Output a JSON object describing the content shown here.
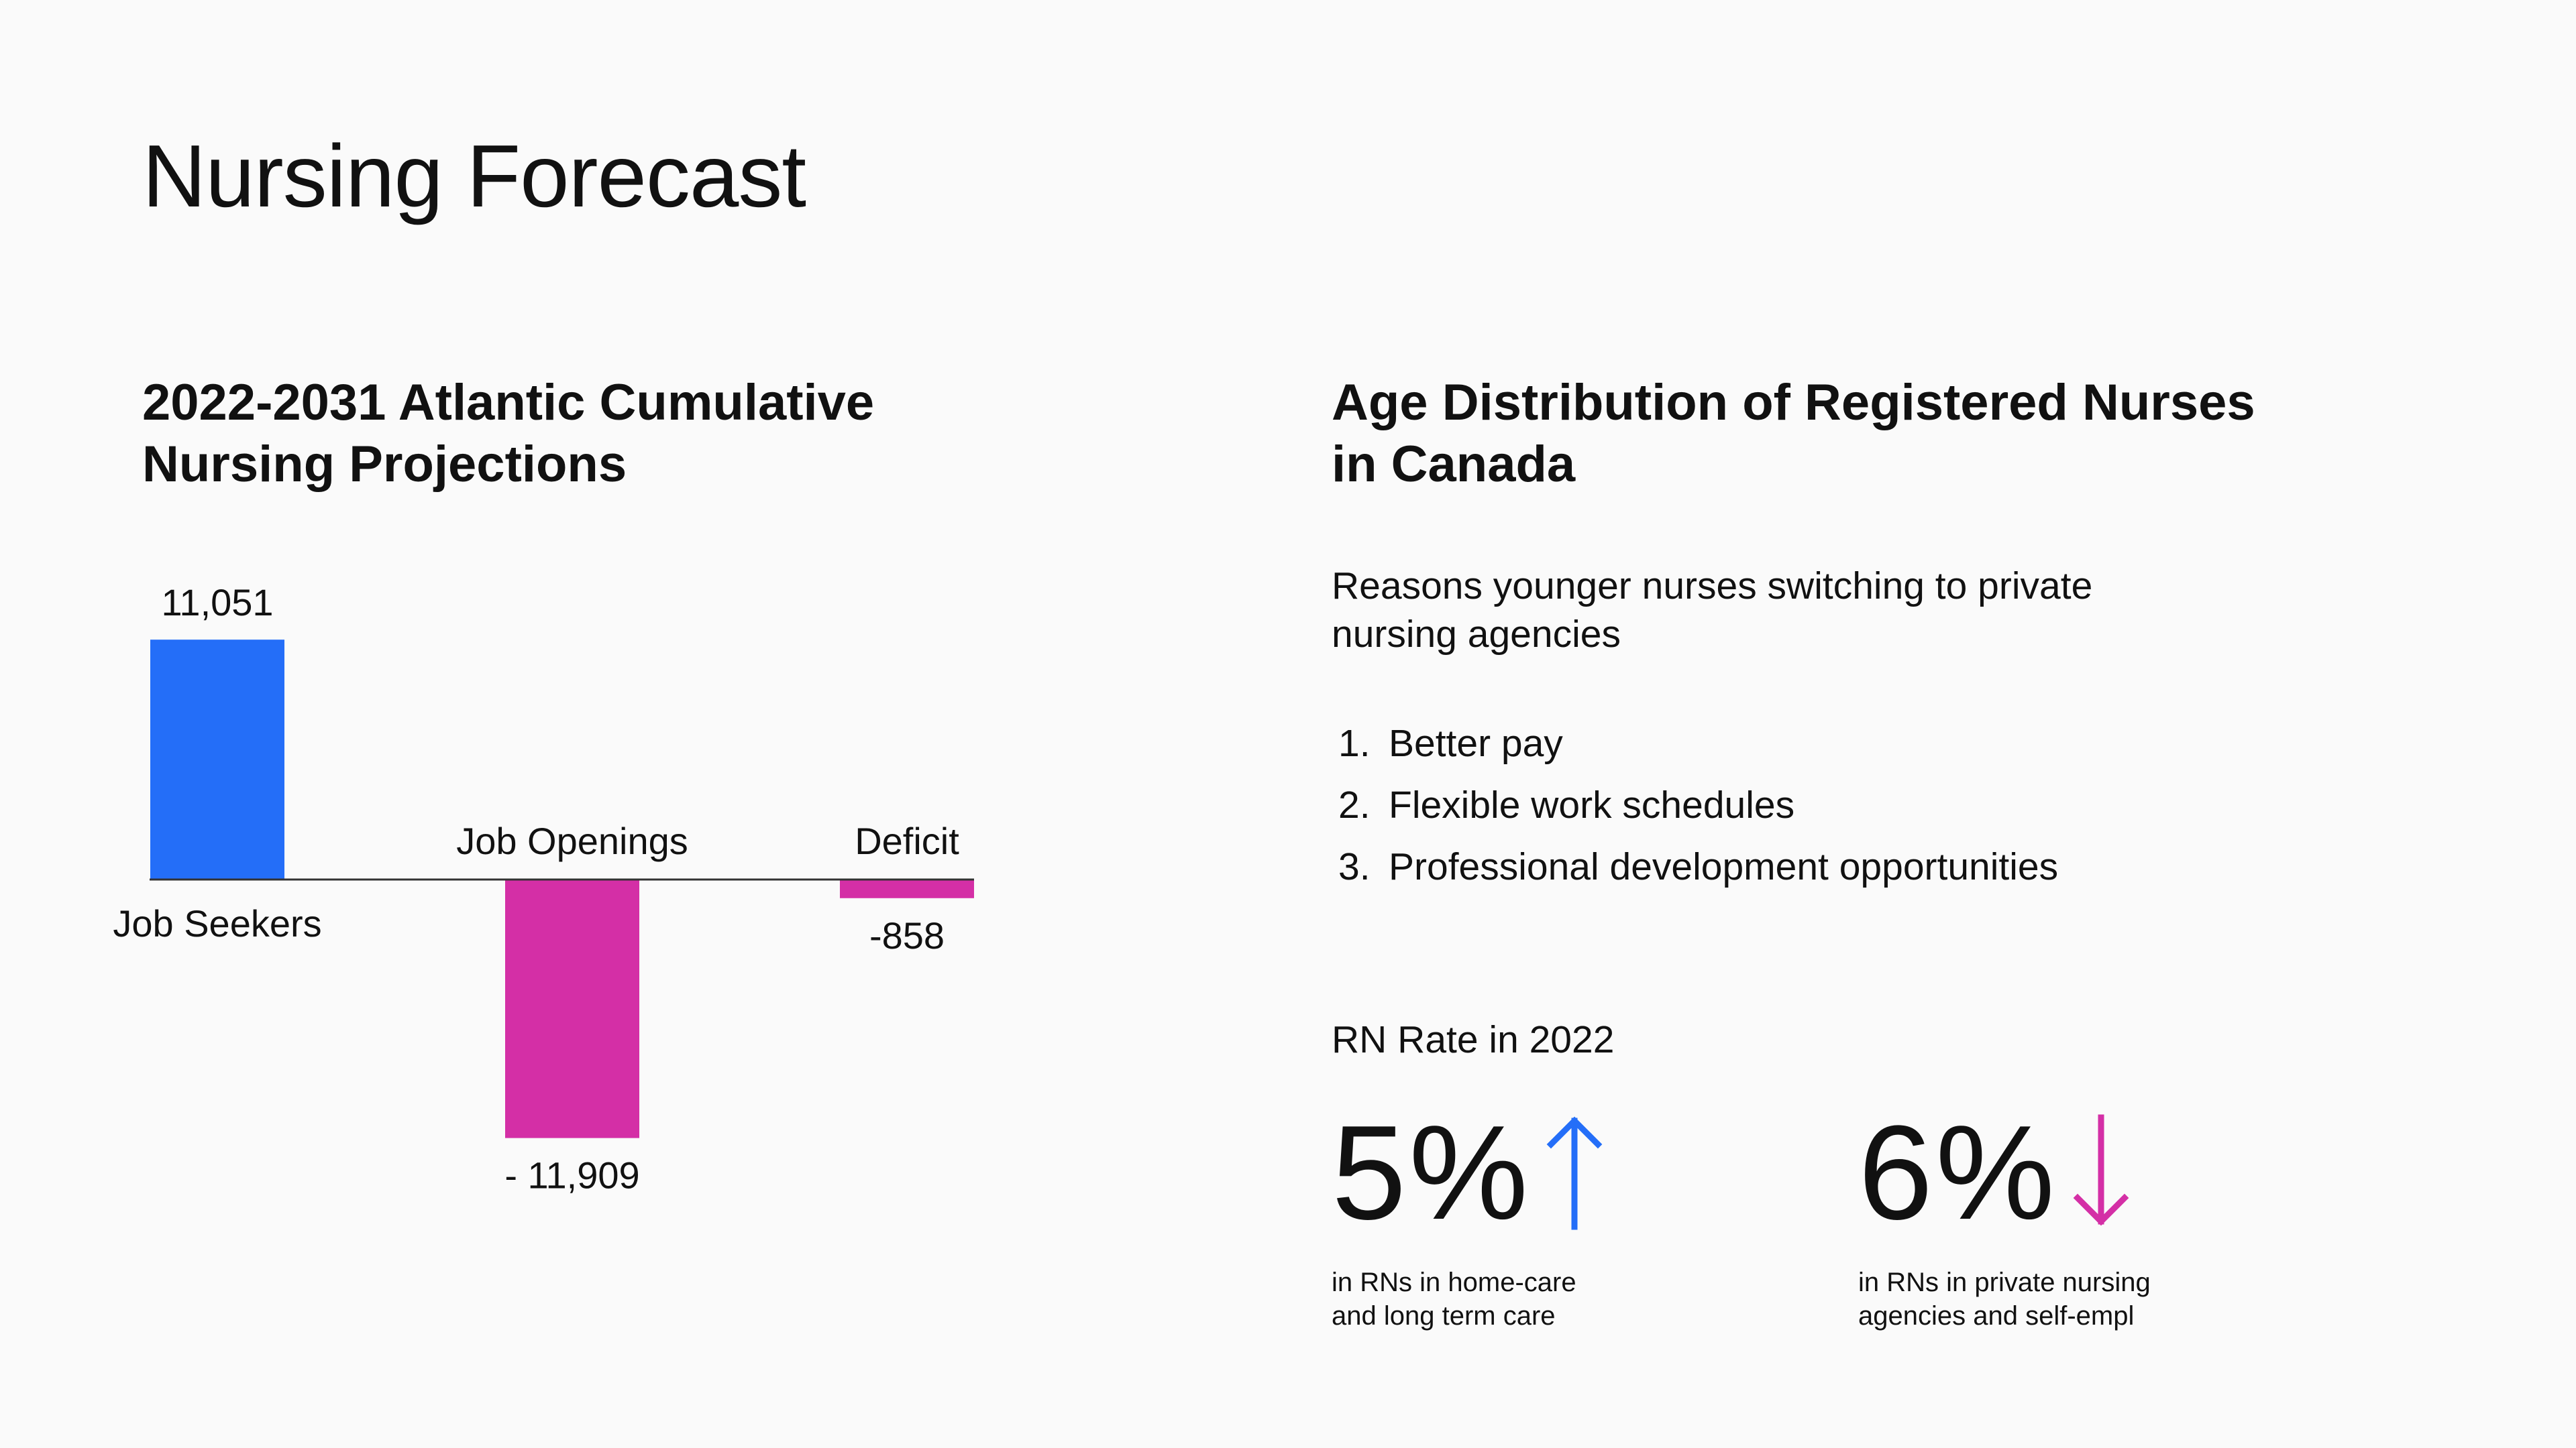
{
  "title": "Nursing Forecast",
  "left_panel": {
    "heading_lines": [
      "2022-2031 Atlantic Cumulative",
      "Nursing Projections"
    ]
  },
  "chart_data": {
    "type": "bar",
    "categories": [
      "Job Seekers",
      "Job Openings",
      "Deficit"
    ],
    "values": [
      11051,
      -11909,
      -858
    ],
    "data_labels": [
      "11,051",
      "- 11,909",
      "-858"
    ],
    "colors": [
      "#246ef8",
      "#d42fa6",
      "#d42fa6"
    ],
    "ylim": [
      -11909,
      11051
    ],
    "grid": false,
    "baseline": true
  },
  "right_panel": {
    "heading_lines": [
      "Age Distribution of Registered Nurses",
      "in Canada"
    ],
    "reasons_intro_lines": [
      "Reasons younger nurses switching to private",
      "nursing agencies"
    ],
    "reasons": [
      {
        "num": "1.",
        "text": "Better pay"
      },
      {
        "num": "2.",
        "text": "Flexible work schedules"
      },
      {
        "num": "3.",
        "text": "Professional development opportunities"
      }
    ],
    "rate_heading": "RN Rate in 2022",
    "stats": [
      {
        "value": "5%",
        "direction": "up",
        "icon": "arrow-up-icon",
        "color": "#246ef8",
        "caption_lines": [
          "in RNs in home-care",
          "and long term care"
        ]
      },
      {
        "value": "6%",
        "direction": "down",
        "icon": "arrow-down-icon",
        "color": "#d42fa6",
        "caption_lines": [
          "in RNs in private nursing",
          "agencies and self-empl"
        ]
      }
    ]
  }
}
